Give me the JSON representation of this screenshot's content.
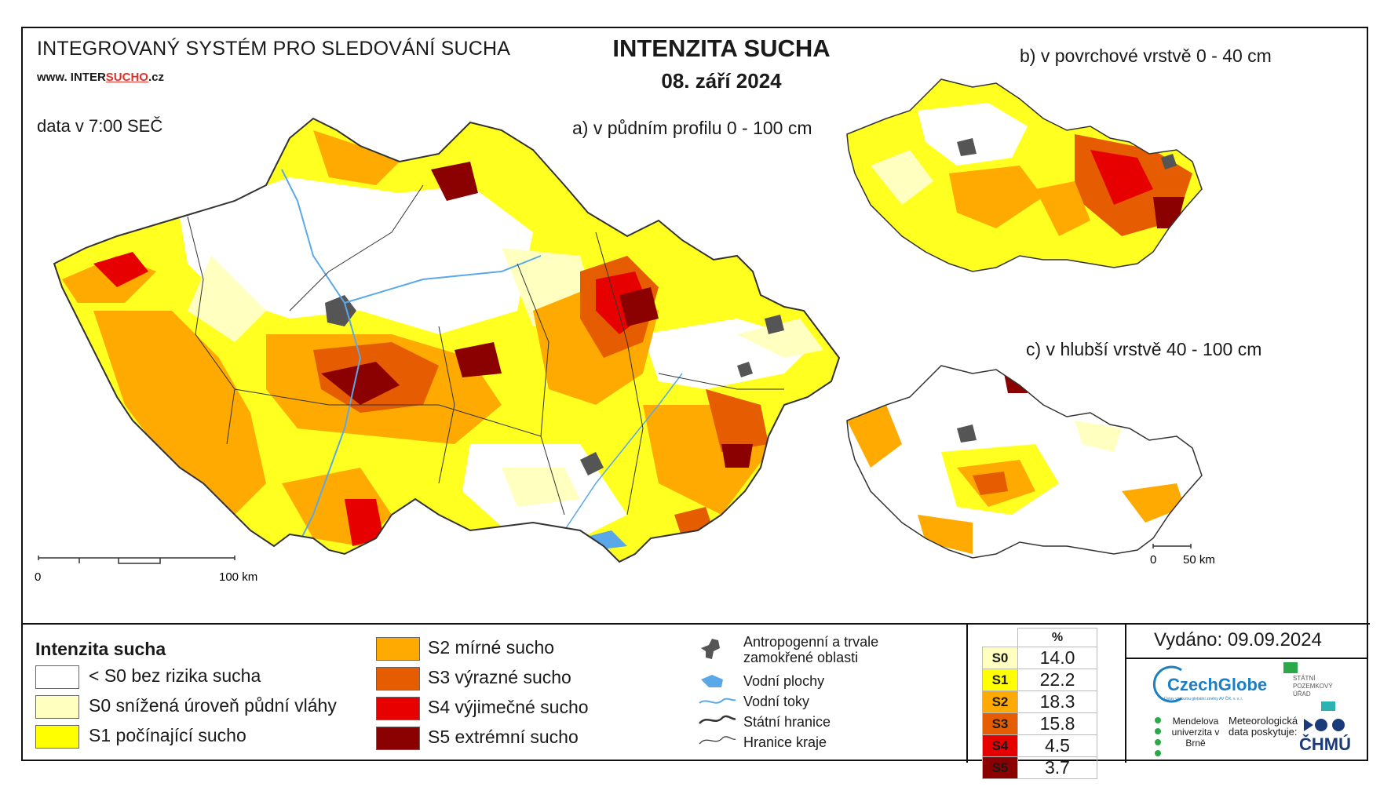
{
  "header": {
    "system_title": "INTEGROVANÝ SYSTÉM PRO SLEDOVÁNÍ SUCHA",
    "website_pre": "www. INTER",
    "website_mid": "SUCHO",
    "website_post": ".cz",
    "data_time": "data v 7:00 SEČ",
    "main_title": "INTENZITA SUCHA",
    "date": "08. září 2024"
  },
  "panels": {
    "a": "a) v půdním profilu 0 - 100 cm",
    "b": "b) v povrchové vrstvě 0 - 40 cm",
    "c": "c) v hlubší vrstvě 40 - 100 cm"
  },
  "scales": {
    "main": {
      "zero": "0",
      "end": "100 km"
    },
    "small": {
      "zero": "0",
      "end": "50 km"
    }
  },
  "legend": {
    "title": "Intenzita sucha",
    "classes": [
      {
        "label": "< S0 bez rizika sucha",
        "color": "#ffffff"
      },
      {
        "label": "S0 snížená úroveň půdní vláhy",
        "color": "#ffffc0"
      },
      {
        "label": "S1 počínající sucho",
        "color": "#ffff00"
      },
      {
        "label": "S2 mírné sucho",
        "color": "#ffaa00"
      },
      {
        "label": "S3 výrazné sucho",
        "color": "#e65c00"
      },
      {
        "label": "S4 výjimečné sucho",
        "color": "#e60000"
      },
      {
        "label": "S5 extrémní sucho",
        "color": "#8b0000"
      }
    ],
    "symbols": [
      {
        "label": "Antropogenní a trvale zamokřené oblasti",
        "icon": "grey-blob-icon"
      },
      {
        "label": "Vodní plochy",
        "icon": "water-body-icon"
      },
      {
        "label": "Vodní toky",
        "icon": "river-line-icon"
      },
      {
        "label": "Státní hranice",
        "icon": "state-border-icon"
      },
      {
        "label": "Hranice kraje",
        "icon": "region-border-icon"
      }
    ]
  },
  "percent_table": {
    "header": "%",
    "rows": [
      {
        "cls": "S0",
        "value": "14.0",
        "color": "#ffffc0"
      },
      {
        "cls": "S1",
        "value": "22.2",
        "color": "#ffff00"
      },
      {
        "cls": "S2",
        "value": "18.3",
        "color": "#ffaa00"
      },
      {
        "cls": "S3",
        "value": "15.8",
        "color": "#e65c00"
      },
      {
        "cls": "S4",
        "value": "4.5",
        "color": "#e60000"
      },
      {
        "cls": "S5",
        "value": "3.7",
        "color": "#8b0000"
      }
    ]
  },
  "footer": {
    "issued": "Vydáno: 09.09.2024",
    "logo_czechglobe": "CzechGlobe",
    "logo_czechglobe_sub": "Ústav výzkumu globální změny AV ČR, v. v. i.",
    "logo_spu": "STÁTNÍ POZEMKOVÝ ÚŘAD",
    "logo_mendel": "Mendelova univerzita v Brně",
    "met_data": "Meteorologická data poskytuje:",
    "logo_chmu": "ČHMÚ"
  }
}
